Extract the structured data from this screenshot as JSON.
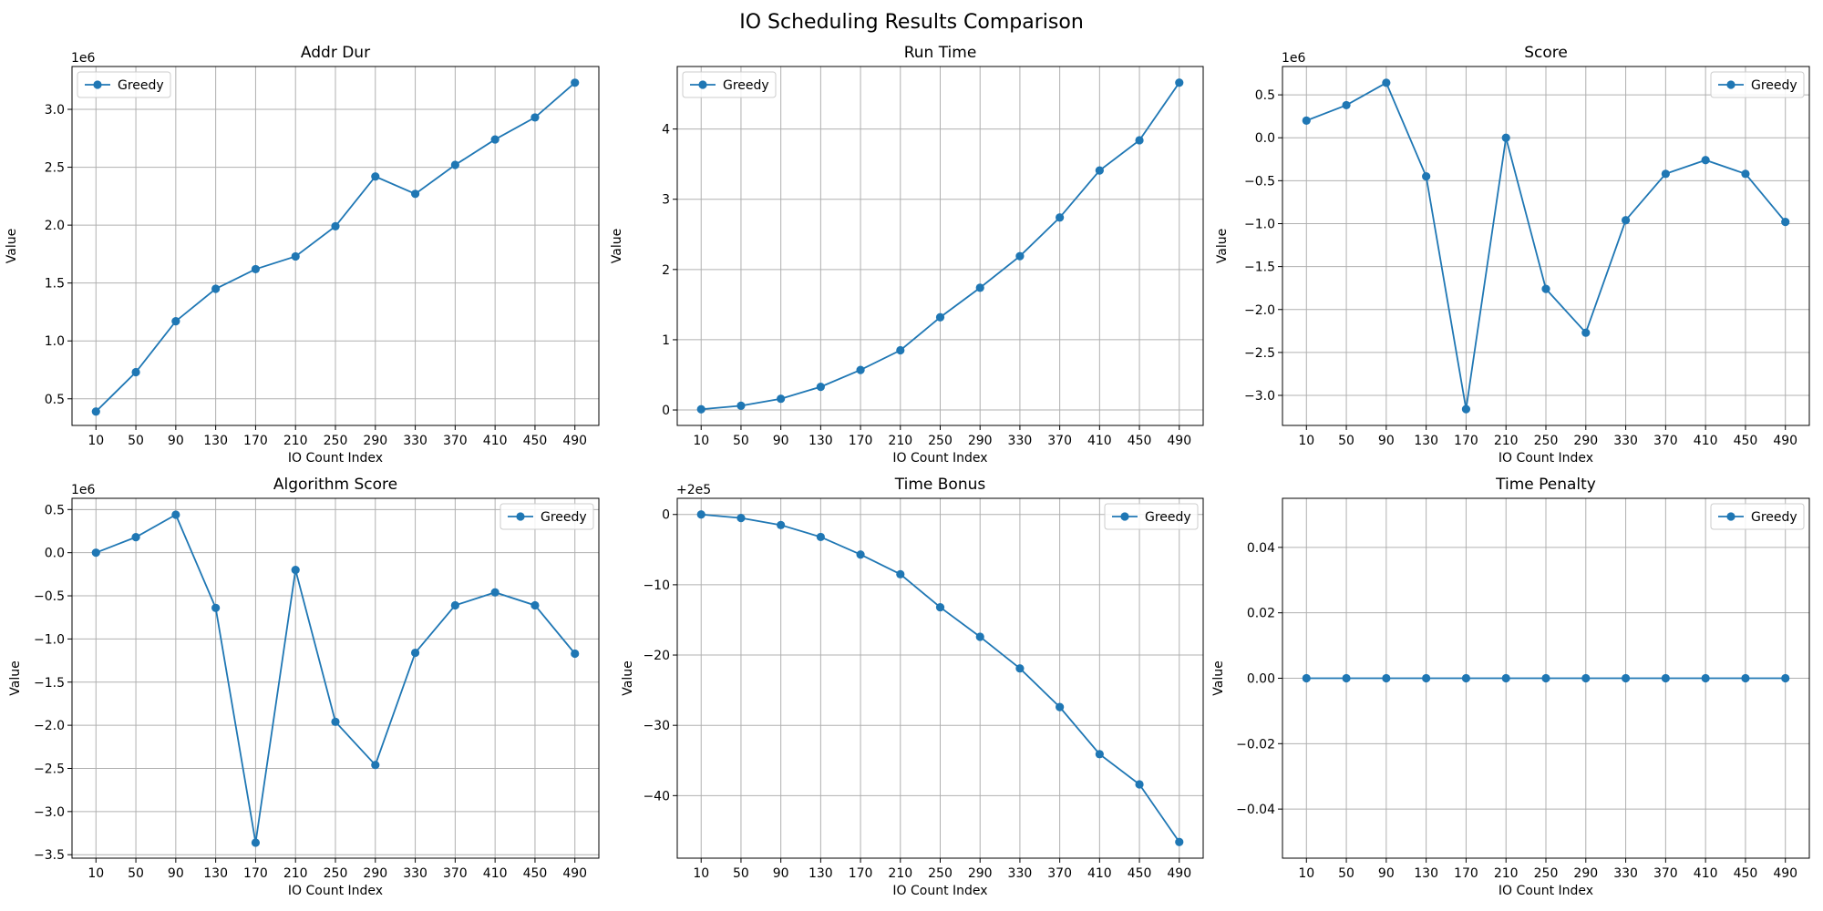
{
  "figure_title": "IO Scheduling Results Comparison",
  "series_color": "#1f77b4",
  "chart_data": [
    {
      "type": "line",
      "title": "Addr Dur",
      "xlabel": "IO Count Index",
      "ylabel": "Value",
      "x": [
        10,
        50,
        90,
        130,
        170,
        210,
        250,
        290,
        330,
        370,
        410,
        450,
        490
      ],
      "series": [
        {
          "name": "Greedy",
          "values": [
            390000,
            730000,
            1170000,
            1450000,
            1620000,
            1730000,
            1990000,
            2420000,
            2270000,
            2520000,
            2740000,
            2930000,
            3230000
          ]
        }
      ],
      "ylim": [
        270000,
        3370000
      ],
      "yticks": [
        500000,
        1000000,
        1500000,
        2000000,
        2500000,
        3000000
      ],
      "ytick_labels": [
        "0.5",
        "1.0",
        "1.5",
        "2.0",
        "2.5",
        "3.0"
      ],
      "y_offset_label": "1e6",
      "legend_position": "upper left",
      "grid": true
    },
    {
      "type": "line",
      "title": "Run Time",
      "xlabel": "IO Count Index",
      "ylabel": "Value",
      "x": [
        10,
        50,
        90,
        130,
        170,
        210,
        250,
        290,
        330,
        370,
        410,
        450,
        490
      ],
      "series": [
        {
          "name": "Greedy",
          "values": [
            0.01,
            0.06,
            0.16,
            0.33,
            0.57,
            0.85,
            1.32,
            1.74,
            2.19,
            2.74,
            3.41,
            3.84,
            4.66
          ]
        }
      ],
      "ylim": [
        -0.22,
        4.89
      ],
      "yticks": [
        0,
        1,
        2,
        3,
        4
      ],
      "ytick_labels": [
        "0",
        "1",
        "2",
        "3",
        "4"
      ],
      "y_offset_label": "",
      "legend_position": "upper left",
      "grid": true
    },
    {
      "type": "line",
      "title": "Score",
      "xlabel": "IO Count Index",
      "ylabel": "Value",
      "x": [
        10,
        50,
        90,
        130,
        170,
        210,
        250,
        290,
        330,
        370,
        410,
        450,
        490
      ],
      "series": [
        {
          "name": "Greedy",
          "values": [
            200000,
            380000,
            640000,
            -450000,
            -3160000,
            0,
            -1760000,
            -2270000,
            -960000,
            -420000,
            -260000,
            -420000,
            -980000
          ]
        }
      ],
      "ylim": [
        -3350000,
        830000
      ],
      "yticks": [
        -3000000,
        -2500000,
        -2000000,
        -1500000,
        -1000000,
        -500000,
        0,
        500000
      ],
      "ytick_labels": [
        "−3.0",
        "−2.5",
        "−2.0",
        "−1.5",
        "−1.0",
        "−0.5",
        "0.0",
        "0.5"
      ],
      "y_offset_label": "1e6",
      "legend_position": "upper right",
      "grid": true
    },
    {
      "type": "line",
      "title": "Algorithm Score",
      "xlabel": "IO Count Index",
      "ylabel": "Value",
      "x": [
        10,
        50,
        90,
        130,
        170,
        210,
        250,
        290,
        330,
        370,
        410,
        450,
        490
      ],
      "series": [
        {
          "name": "Greedy",
          "values": [
            0,
            180000,
            440000,
            -640000,
            -3360000,
            -200000,
            -1960000,
            -2460000,
            -1160000,
            -610000,
            -460000,
            -610000,
            -1170000
          ]
        }
      ],
      "ylim": [
        -3540000,
        630000
      ],
      "yticks": [
        -3500000,
        -3000000,
        -2500000,
        -2000000,
        -1500000,
        -1000000,
        -500000,
        0,
        500000
      ],
      "ytick_labels": [
        "−3.5",
        "−3.0",
        "−2.5",
        "−2.0",
        "−1.5",
        "−1.0",
        "−0.5",
        "0.0",
        "0.5"
      ],
      "y_offset_label": "1e6",
      "legend_position": "upper right",
      "grid": true
    },
    {
      "type": "line",
      "title": "Time Bonus",
      "xlabel": "IO Count Index",
      "ylabel": "Value",
      "x": [
        10,
        50,
        90,
        130,
        170,
        210,
        250,
        290,
        330,
        370,
        410,
        450,
        490
      ],
      "series": [
        {
          "name": "Greedy",
          "values": [
            0,
            -0.5,
            -1.5,
            -3.2,
            -5.7,
            -8.5,
            -13.2,
            -17.4,
            -21.9,
            -27.4,
            -34.1,
            -38.4,
            -46.6
          ]
        }
      ],
      "ylim": [
        -48.9,
        2.3
      ],
      "yticks": [
        -40,
        -30,
        -20,
        -10,
        0
      ],
      "ytick_labels": [
        "−40",
        "−30",
        "−20",
        "−10",
        "0"
      ],
      "y_offset_label": "+2e5",
      "legend_position": "upper right",
      "grid": true
    },
    {
      "type": "line",
      "title": "Time Penalty",
      "xlabel": "IO Count Index",
      "ylabel": "Value",
      "x": [
        10,
        50,
        90,
        130,
        170,
        210,
        250,
        290,
        330,
        370,
        410,
        450,
        490
      ],
      "series": [
        {
          "name": "Greedy",
          "values": [
            0,
            0,
            0,
            0,
            0,
            0,
            0,
            0,
            0,
            0,
            0,
            0,
            0
          ]
        }
      ],
      "ylim": [
        -0.055,
        0.055
      ],
      "yticks": [
        -0.04,
        -0.02,
        0,
        0.02,
        0.04
      ],
      "ytick_labels": [
        "−0.04",
        "−0.02",
        "0.00",
        "0.02",
        "0.04"
      ],
      "y_offset_label": "",
      "legend_position": "upper right",
      "grid": true
    }
  ]
}
